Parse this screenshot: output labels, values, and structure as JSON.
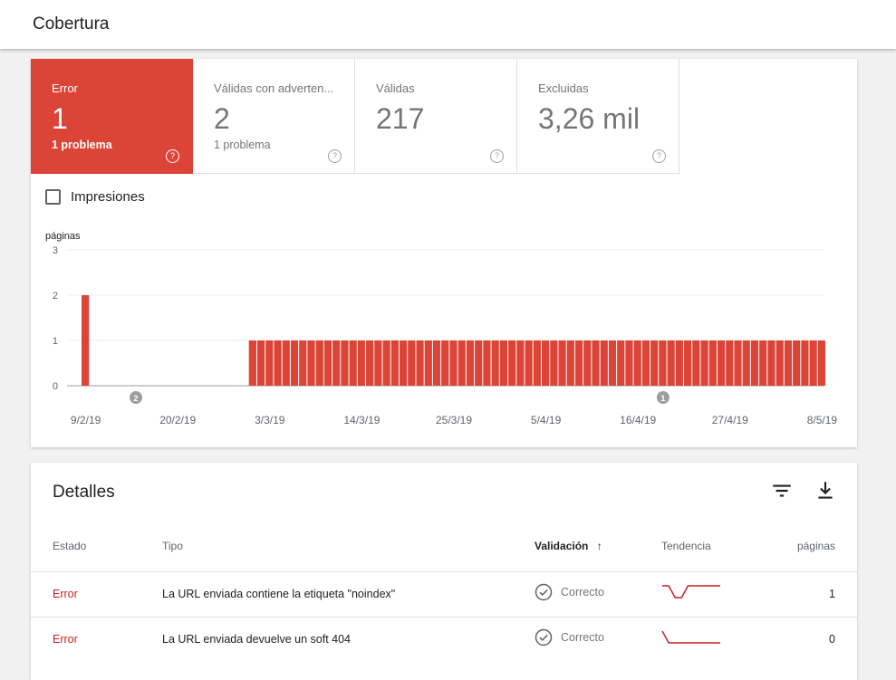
{
  "header": {
    "title": "Cobertura"
  },
  "tiles": [
    {
      "label": "Error",
      "value": "1",
      "sub": "1 problema",
      "active": true
    },
    {
      "label": "Válidas con adverten...",
      "value": "2",
      "sub": "1 problema",
      "active": false
    },
    {
      "label": "Válidas",
      "value": "217",
      "sub": "",
      "active": false
    },
    {
      "label": "Excluidas",
      "value": "3,26 mil",
      "sub": "",
      "active": false
    }
  ],
  "help_glyph": "?",
  "impressions": {
    "label": "Impresiones",
    "checked": false
  },
  "chart_data": {
    "type": "bar",
    "ylabel": "páginas",
    "ylim": [
      0,
      3
    ],
    "yticks": [
      0,
      1,
      2,
      3
    ],
    "xlabels": [
      "9/2/19",
      "20/2/19",
      "3/3/19",
      "14/3/19",
      "25/3/19",
      "5/4/19",
      "16/4/19",
      "27/4/19",
      "8/5/19"
    ],
    "x_start": "9/2/19",
    "x_end": "8/5/19",
    "series_color": "#db4437",
    "values": [
      2,
      0,
      0,
      0,
      0,
      0,
      0,
      0,
      0,
      0,
      0,
      0,
      0,
      0,
      0,
      0,
      0,
      0,
      0,
      0,
      1,
      1,
      1,
      1,
      1,
      1,
      1,
      1,
      1,
      1,
      1,
      1,
      1,
      1,
      1,
      1,
      1,
      1,
      1,
      1,
      1,
      1,
      1,
      1,
      1,
      1,
      1,
      1,
      1,
      1,
      1,
      1,
      1,
      1,
      1,
      1,
      1,
      1,
      1,
      1,
      1,
      1,
      1,
      1,
      1,
      1,
      1,
      1,
      1,
      1,
      1,
      1,
      1,
      1,
      1,
      1,
      1,
      1,
      1,
      1,
      1,
      1,
      1,
      1,
      1,
      1,
      1,
      1,
      1
    ],
    "annotations": [
      {
        "label": "2",
        "date": "15/2/19"
      },
      {
        "label": "1",
        "date": "19/4/19"
      }
    ]
  },
  "details": {
    "title": "Detalles",
    "columns": {
      "estado": "Estado",
      "tipo": "Tipo",
      "validacion": "Validación",
      "tendencia": "Tendencia",
      "paginas": "páginas"
    },
    "sort_arrow": "↑",
    "rows": [
      {
        "estado": "Error",
        "tipo": "La URL enviada contiene la etiqueta \"noindex\"",
        "validacion": "Correcto",
        "paginas": "1",
        "trend": [
          1,
          1,
          0,
          0,
          1,
          1,
          1,
          1,
          1,
          1
        ]
      },
      {
        "estado": "Error",
        "tipo": "La URL enviada devuelve un soft 404",
        "validacion": "Correcto",
        "paginas": "0",
        "trend": [
          1,
          0,
          0,
          0,
          0,
          0,
          0,
          0,
          0,
          0
        ]
      }
    ]
  },
  "colors": {
    "error": "#db4437",
    "error_text": "#c5221f",
    "grid": "#e0e0e0",
    "axis_text": "#5f6368"
  },
  "icons": {
    "filter": "filter-icon",
    "download": "download-icon",
    "check": "check-circle-icon",
    "help": "help-circle-icon"
  }
}
